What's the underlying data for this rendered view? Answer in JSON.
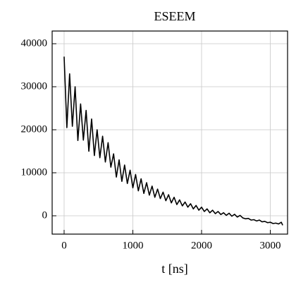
{
  "chart_data": {
    "type": "line",
    "title": "ESEEM",
    "xlabel": "t [ns]",
    "x": [
      0,
      40,
      80,
      120,
      160,
      200,
      240,
      280,
      320,
      360,
      400,
      440,
      480,
      520,
      560,
      600,
      640,
      680,
      720,
      760,
      800,
      840,
      880,
      920,
      960,
      1000,
      1040,
      1080,
      1120,
      1160,
      1200,
      1240,
      1280,
      1320,
      1360,
      1400,
      1440,
      1480,
      1520,
      1560,
      1600,
      1640,
      1680,
      1720,
      1760,
      1800,
      1840,
      1880,
      1920,
      1960,
      2000,
      2040,
      2080,
      2120,
      2160,
      2200,
      2240,
      2280,
      2320,
      2360,
      2400,
      2440,
      2480,
      2520,
      2560,
      2600,
      2640,
      2680,
      2720,
      2760,
      2800,
      2840,
      2880,
      2920,
      2960,
      3000,
      3040,
      3080,
      3120,
      3160,
      3180
    ],
    "series": [
      {
        "name": "ESEEM",
        "color": "#000000",
        "values": [
          37000,
          20500,
          33000,
          20800,
          30000,
          17500,
          26000,
          17600,
          24500,
          15000,
          22500,
          14000,
          20000,
          13500,
          18500,
          12500,
          17000,
          11300,
          14400,
          9000,
          13000,
          8000,
          11800,
          7500,
          10600,
          6500,
          9600,
          5800,
          8600,
          5200,
          7700,
          4800,
          6900,
          4300,
          6200,
          4000,
          5500,
          3500,
          4900,
          3000,
          4300,
          2600,
          3700,
          2300,
          3200,
          2000,
          2800,
          1600,
          2400,
          1300,
          2000,
          1000,
          1600,
          700,
          1300,
          500,
          1000,
          300,
          700,
          100,
          600,
          -100,
          350,
          -300,
          100,
          -500,
          -700,
          -600,
          -1000,
          -900,
          -1200,
          -1000,
          -1400,
          -1300,
          -1600,
          -1500,
          -1800,
          -1700,
          -1900,
          -1500,
          -2200
        ]
      }
    ],
    "xlim": [
      -174,
      3251
    ],
    "ylim": [
      -4260,
      42950
    ],
    "xticks": [
      0,
      1000,
      2000,
      3000
    ],
    "yticks": [
      0,
      10000,
      20000,
      30000,
      40000
    ],
    "grid": true
  }
}
